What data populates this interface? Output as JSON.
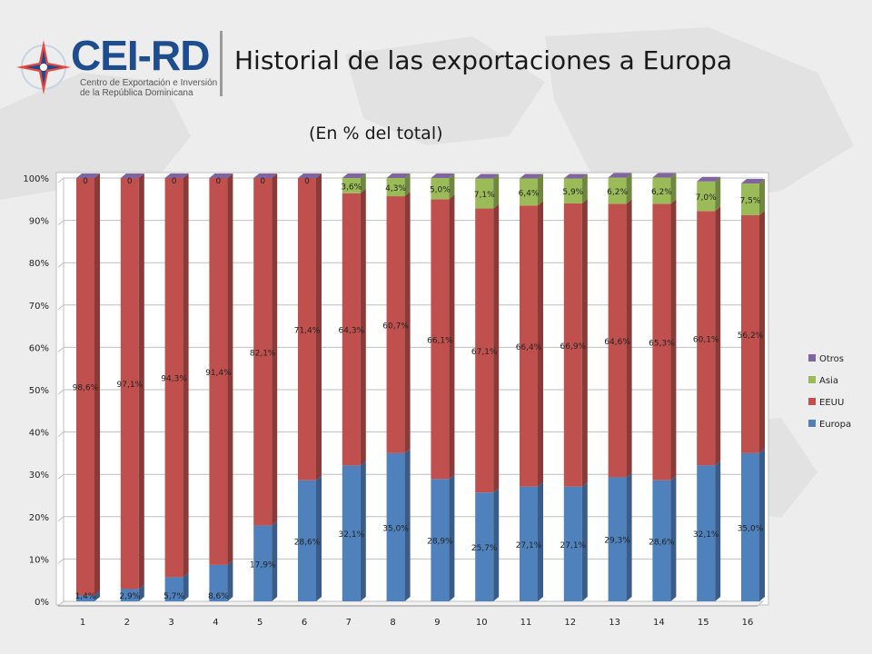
{
  "header": {
    "logo_name": "CEI-RD",
    "logo_sub_1": "Centro de Exportación e Inversión",
    "logo_sub_2": "de la República Dominicana",
    "title": "Historial de las exportaciones a Europa"
  },
  "chart_data": {
    "type": "bar",
    "stacked": true,
    "normalized_percent": true,
    "subtitle": "(En % del total)",
    "categories": [
      "1",
      "2",
      "3",
      "4",
      "5",
      "6",
      "7",
      "8",
      "9",
      "10",
      "11",
      "12",
      "13",
      "14",
      "15",
      "16"
    ],
    "y_ticks": [
      "0%",
      "10%",
      "20%",
      "30%",
      "40%",
      "50%",
      "60%",
      "70%",
      "80%",
      "90%",
      "100%"
    ],
    "ylim": [
      0,
      100
    ],
    "grid": true,
    "legend_position": "right",
    "series": [
      {
        "name": "Europa",
        "color": "#4f81bd",
        "values": [
          1.4,
          2.9,
          5.7,
          8.6,
          17.9,
          28.6,
          32.1,
          35.0,
          28.9,
          25.7,
          27.1,
          27.1,
          29.3,
          28.6,
          32.1,
          35.0
        ],
        "labels": [
          "1,4%",
          "2,9%",
          "5,7%",
          "8,6%",
          "17,9%",
          "28,6%",
          "32,1%",
          "35,0%",
          "28,9%",
          "25,7%",
          "27,1%",
          "27,1%",
          "29,3%",
          "28,6%",
          "32,1%",
          "35,0%"
        ]
      },
      {
        "name": "EEUU",
        "color": "#c0504d",
        "values": [
          98.6,
          97.1,
          94.3,
          91.4,
          82.1,
          71.4,
          64.3,
          60.7,
          66.1,
          67.1,
          66.4,
          66.9,
          64.6,
          65.3,
          60.1,
          56.2
        ],
        "labels": [
          "98,6%",
          "97,1%",
          "94,3%",
          "91,4%",
          "82,1%",
          "71,4%",
          "64,3%",
          "60,7%",
          "66,1%",
          "67,1%",
          "66,4%",
          "66,9%",
          "64,6%",
          "65,3%",
          "60,1%",
          "56,2%"
        ]
      },
      {
        "name": "Asia",
        "color": "#9bbb59",
        "values": [
          0,
          0,
          0,
          0,
          0,
          0,
          3.6,
          4.3,
          5.0,
          7.1,
          6.4,
          5.9,
          6.2,
          6.2,
          7.0,
          7.5
        ],
        "labels": [
          "0",
          "0",
          "0",
          "0",
          "0",
          "0",
          "3,6%",
          "4,3%",
          "5,0%",
          "7,1%",
          "6,4%",
          "5,9%",
          "6,2%",
          "6,2%",
          "7,0%",
          "7,5%"
        ]
      },
      {
        "name": "Otros",
        "color": "#8064a2",
        "values": [
          0,
          0,
          0,
          0,
          0,
          0,
          0,
          0,
          0,
          0,
          0,
          0,
          0,
          0,
          0,
          0
        ]
      }
    ]
  }
}
